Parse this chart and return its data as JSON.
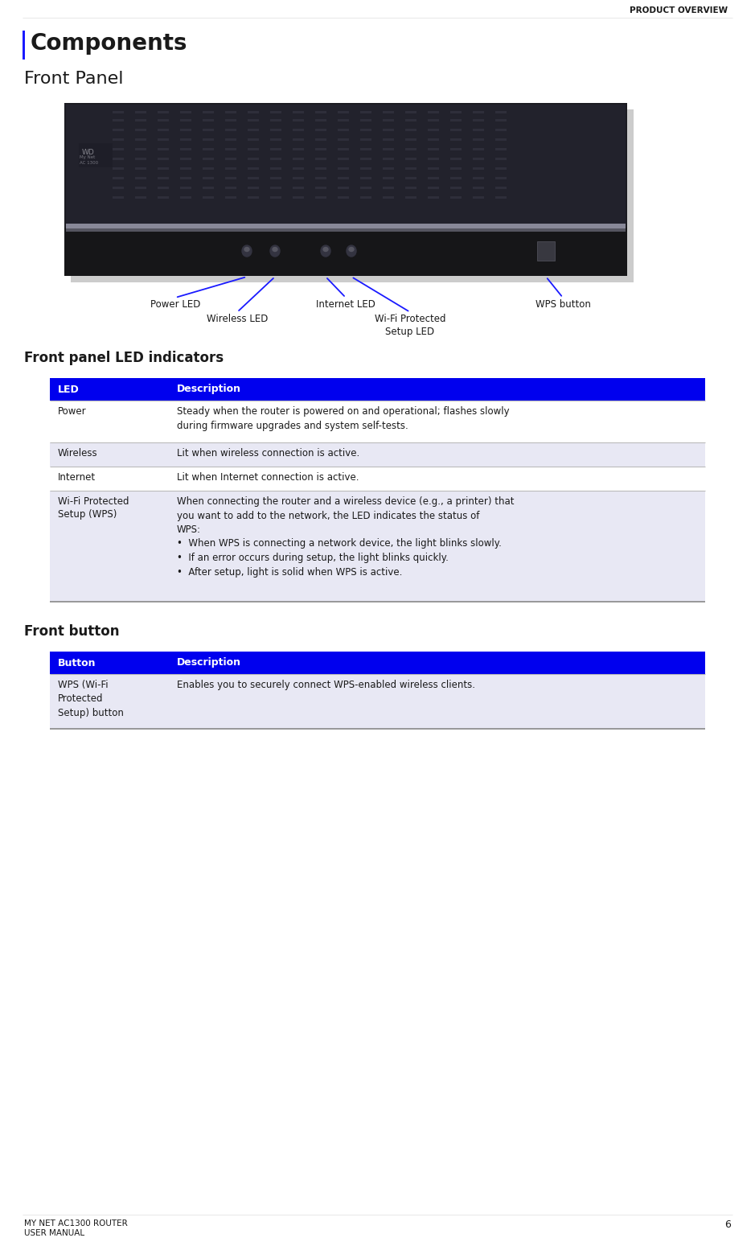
{
  "page_title": "PRODUCT OVERVIEW",
  "header_left_line1": "MY NET AC1300 ROUTER",
  "header_left_line2": "USER MANUAL",
  "page_number": "6",
  "section_title": "Components",
  "subsection1": "Front Panel",
  "subsection2": "Front panel LED indicators",
  "subsection3": "Front button",
  "table1_header": [
    "LED",
    "Description"
  ],
  "table1_rows": [
    [
      "Power",
      "Steady when the router is powered on and operational; flashes slowly\nduring firmware upgrades and system self-tests."
    ],
    [
      "Wireless",
      "Lit when wireless connection is active."
    ],
    [
      "Internet",
      "Lit when Internet connection is active."
    ],
    [
      "Wi-Fi Protected\nSetup (WPS)",
      "When connecting the router and a wireless device (e.g., a printer) that\nyou want to add to the network, the LED indicates the status of\nWPS:\n•  When WPS is connecting a network device, the light blinks slowly.\n•  If an error occurs during setup, the light blinks quickly.\n•  After setup, light is solid when WPS is active."
    ]
  ],
  "table2_header": [
    "Button",
    "Description"
  ],
  "table2_rows": [
    [
      "WPS (Wi-Fi\nProtected\nSetup) button",
      "Enables you to securely connect WPS-enabled wireless clients."
    ]
  ],
  "header_color": "#0000EE",
  "header_text_color": "#FFFFFF",
  "row_alt_color": "#E8E8F4",
  "row_normal_color": "#FFFFFF",
  "border_color": "#aaaaaa",
  "arrow_color": "#1a1aff",
  "label_color": "#1a1a1a",
  "bg_color": "#FFFFFF"
}
